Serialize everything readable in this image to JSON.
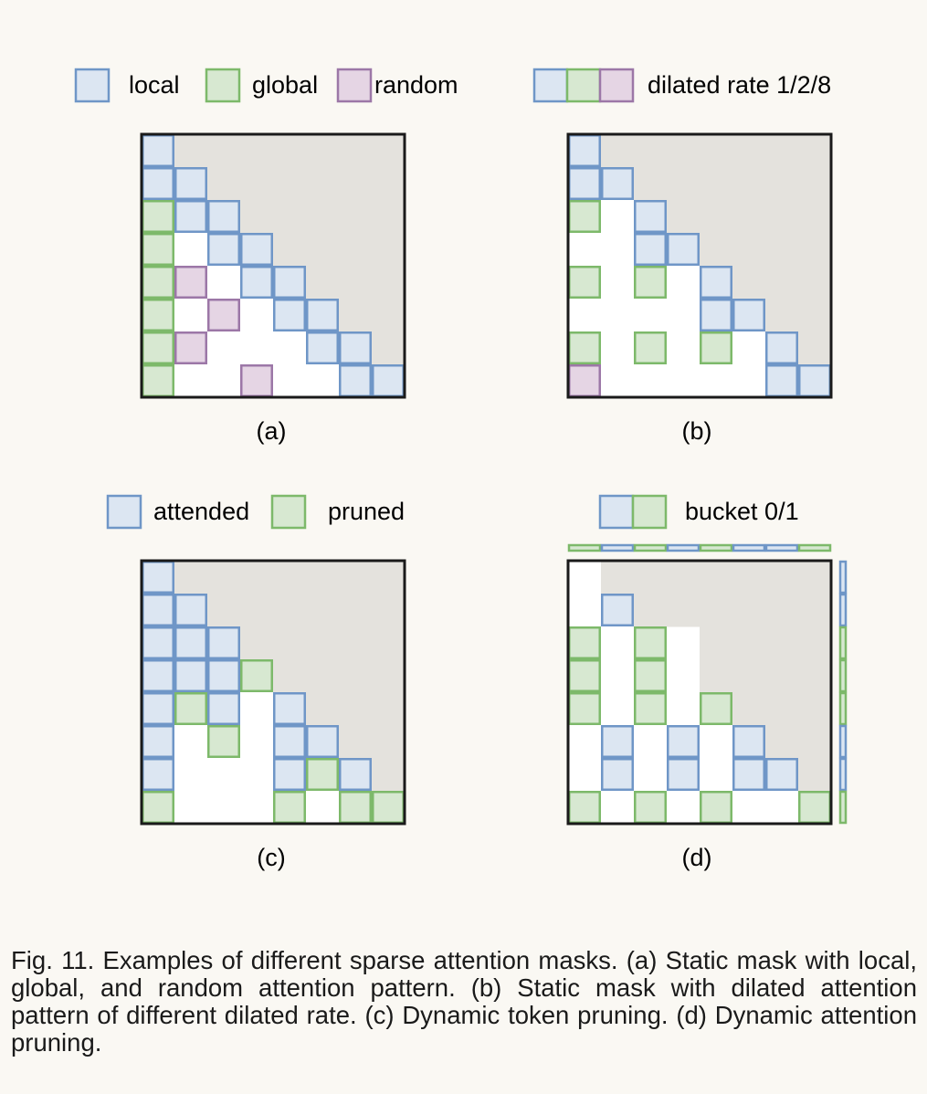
{
  "colors": {
    "local": "#dce6f2",
    "local_stroke": "#6f96c7",
    "global": "#d7e8d1",
    "global_stroke": "#7db96a",
    "random": "#e5d5e4",
    "random_stroke": "#9c77a7",
    "masked": "#e4e2dd",
    "border": "#1a1a1a"
  },
  "legends": {
    "a": [
      "local",
      "global",
      "random"
    ],
    "b": "dilated rate 1/2/8",
    "c": [
      "attended",
      "pruned"
    ],
    "d": "bucket 0/1"
  },
  "panels": [
    {
      "label": "(a)",
      "cells": [
        {
          "r": 0,
          "c": 0,
          "t": "local"
        },
        {
          "r": 1,
          "c": 0,
          "t": "local"
        },
        {
          "r": 1,
          "c": 1,
          "t": "local"
        },
        {
          "r": 2,
          "c": 0,
          "t": "global"
        },
        {
          "r": 2,
          "c": 1,
          "t": "local"
        },
        {
          "r": 2,
          "c": 2,
          "t": "local"
        },
        {
          "r": 3,
          "c": 0,
          "t": "global"
        },
        {
          "r": 3,
          "c": 2,
          "t": "local"
        },
        {
          "r": 3,
          "c": 3,
          "t": "local"
        },
        {
          "r": 4,
          "c": 0,
          "t": "global"
        },
        {
          "r": 4,
          "c": 1,
          "t": "random"
        },
        {
          "r": 4,
          "c": 3,
          "t": "local"
        },
        {
          "r": 4,
          "c": 4,
          "t": "local"
        },
        {
          "r": 5,
          "c": 0,
          "t": "global"
        },
        {
          "r": 5,
          "c": 2,
          "t": "random"
        },
        {
          "r": 5,
          "c": 4,
          "t": "local"
        },
        {
          "r": 5,
          "c": 5,
          "t": "local"
        },
        {
          "r": 6,
          "c": 0,
          "t": "global"
        },
        {
          "r": 6,
          "c": 1,
          "t": "random"
        },
        {
          "r": 6,
          "c": 5,
          "t": "local"
        },
        {
          "r": 6,
          "c": 6,
          "t": "local"
        },
        {
          "r": 7,
          "c": 0,
          "t": "global"
        },
        {
          "r": 7,
          "c": 3,
          "t": "random"
        },
        {
          "r": 7,
          "c": 6,
          "t": "local"
        },
        {
          "r": 7,
          "c": 7,
          "t": "local"
        }
      ]
    },
    {
      "label": "(b)",
      "cells": [
        {
          "r": 0,
          "c": 0,
          "t": "local"
        },
        {
          "r": 1,
          "c": 0,
          "t": "local"
        },
        {
          "r": 1,
          "c": 1,
          "t": "local"
        },
        {
          "r": 2,
          "c": 0,
          "t": "global"
        },
        {
          "r": 2,
          "c": 2,
          "t": "local"
        },
        {
          "r": 3,
          "c": 2,
          "t": "local"
        },
        {
          "r": 3,
          "c": 3,
          "t": "local"
        },
        {
          "r": 4,
          "c": 0,
          "t": "global"
        },
        {
          "r": 4,
          "c": 2,
          "t": "global"
        },
        {
          "r": 4,
          "c": 4,
          "t": "local"
        },
        {
          "r": 5,
          "c": 4,
          "t": "local"
        },
        {
          "r": 5,
          "c": 5,
          "t": "local"
        },
        {
          "r": 6,
          "c": 0,
          "t": "global"
        },
        {
          "r": 6,
          "c": 2,
          "t": "global"
        },
        {
          "r": 6,
          "c": 4,
          "t": "global"
        },
        {
          "r": 6,
          "c": 6,
          "t": "local"
        },
        {
          "r": 7,
          "c": 0,
          "t": "random"
        },
        {
          "r": 7,
          "c": 6,
          "t": "local"
        },
        {
          "r": 7,
          "c": 7,
          "t": "local"
        }
      ]
    },
    {
      "label": "(c)",
      "cells": [
        {
          "r": 0,
          "c": 0,
          "t": "local"
        },
        {
          "r": 1,
          "c": 0,
          "t": "local"
        },
        {
          "r": 1,
          "c": 1,
          "t": "local"
        },
        {
          "r": 2,
          "c": 0,
          "t": "local"
        },
        {
          "r": 2,
          "c": 1,
          "t": "local"
        },
        {
          "r": 2,
          "c": 2,
          "t": "local"
        },
        {
          "r": 3,
          "c": 0,
          "t": "local"
        },
        {
          "r": 3,
          "c": 1,
          "t": "local"
        },
        {
          "r": 3,
          "c": 2,
          "t": "local"
        },
        {
          "r": 3,
          "c": 3,
          "t": "global"
        },
        {
          "r": 4,
          "c": 0,
          "t": "local"
        },
        {
          "r": 4,
          "c": 1,
          "t": "global"
        },
        {
          "r": 4,
          "c": 2,
          "t": "local"
        },
        {
          "r": 4,
          "c": 4,
          "t": "local"
        },
        {
          "r": 5,
          "c": 0,
          "t": "local"
        },
        {
          "r": 5,
          "c": 2,
          "t": "global"
        },
        {
          "r": 5,
          "c": 4,
          "t": "local"
        },
        {
          "r": 5,
          "c": 5,
          "t": "local"
        },
        {
          "r": 6,
          "c": 0,
          "t": "local"
        },
        {
          "r": 6,
          "c": 4,
          "t": "local"
        },
        {
          "r": 6,
          "c": 5,
          "t": "global"
        },
        {
          "r": 6,
          "c": 6,
          "t": "local"
        },
        {
          "r": 7,
          "c": 0,
          "t": "global"
        },
        {
          "r": 7,
          "c": 4,
          "t": "global"
        },
        {
          "r": 7,
          "c": 6,
          "t": "global"
        },
        {
          "r": 7,
          "c": 7,
          "t": "global"
        }
      ]
    },
    {
      "label": "(d)",
      "extraWhite": [
        {
          "r": 2,
          "c": 3
        }
      ],
      "top": [
        "global",
        "local",
        "global",
        "local",
        "global",
        "local",
        "local",
        "global"
      ],
      "side": [
        "local",
        "local",
        "global",
        "global",
        "global",
        "local",
        "local",
        "global"
      ],
      "cells": [
        {
          "r": 1,
          "c": 1,
          "t": "local"
        },
        {
          "r": 2,
          "c": 0,
          "t": "global"
        },
        {
          "r": 2,
          "c": 2,
          "t": "global"
        },
        {
          "r": 3,
          "c": 0,
          "t": "global"
        },
        {
          "r": 3,
          "c": 2,
          "t": "global"
        },
        {
          "r": 4,
          "c": 0,
          "t": "global"
        },
        {
          "r": 4,
          "c": 2,
          "t": "global"
        },
        {
          "r": 4,
          "c": 4,
          "t": "global"
        },
        {
          "r": 5,
          "c": 1,
          "t": "local"
        },
        {
          "r": 5,
          "c": 3,
          "t": "local"
        },
        {
          "r": 5,
          "c": 5,
          "t": "local"
        },
        {
          "r": 6,
          "c": 1,
          "t": "local"
        },
        {
          "r": 6,
          "c": 3,
          "t": "local"
        },
        {
          "r": 6,
          "c": 5,
          "t": "local"
        },
        {
          "r": 6,
          "c": 6,
          "t": "local"
        },
        {
          "r": 7,
          "c": 0,
          "t": "global"
        },
        {
          "r": 7,
          "c": 2,
          "t": "global"
        },
        {
          "r": 7,
          "c": 4,
          "t": "global"
        },
        {
          "r": 7,
          "c": 7,
          "t": "global"
        }
      ]
    }
  ],
  "caption": "Fig. 11. Examples of different sparse attention masks. (a) Static mask with local, global, and random attention pattern. (b) Static mask with dilated attention pattern of different dilated rate. (c) Dynamic token pruning. (d) Dynamic attention pruning."
}
